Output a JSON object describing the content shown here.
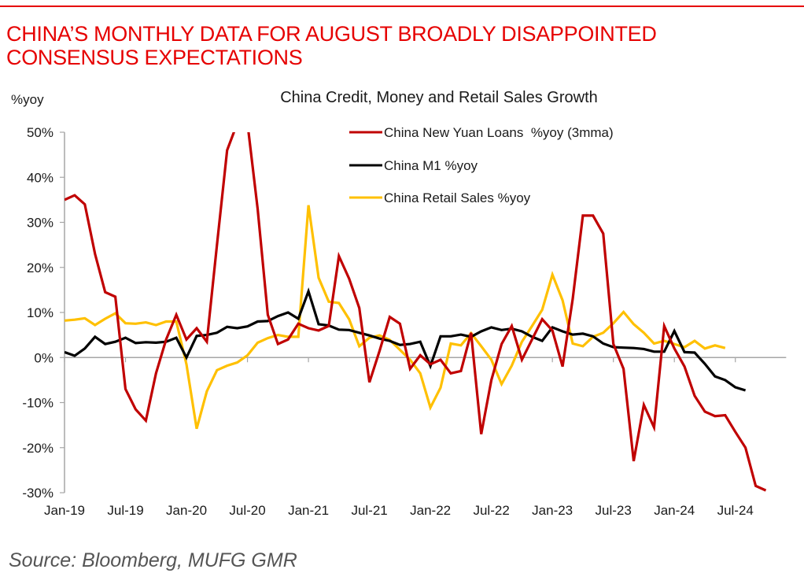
{
  "header": {
    "headline_line1": "CHINA’S MONTHLY DATA FOR AUGUST BROADLY DISAPPOINTED",
    "headline_line2": "CONSENSUS EXPECTATIONS",
    "rule_color": "#e60000"
  },
  "footer": {
    "source": "Source: Bloomberg, MUFG GMR"
  },
  "chart_data": {
    "type": "line",
    "title": "China Credit, Money and Retail Sales Growth",
    "ylabel": "%yoy",
    "xlabel": "",
    "ylim": [
      -30,
      50
    ],
    "yticks": [
      50,
      40,
      30,
      20,
      10,
      0,
      -10,
      -20,
      -30
    ],
    "ytick_labels": [
      "50%",
      "40%",
      "30%",
      "20%",
      "10%",
      "0%",
      "-10%",
      "-20%",
      "-30%"
    ],
    "x_start": "Jan-19",
    "x_end": "Aug-24",
    "xtick_labels": [
      "Jan-19",
      "Jul-19",
      "Jan-20",
      "Jul-20",
      "Jan-21",
      "Jul-21",
      "Jan-22",
      "Jul-22",
      "Jan-23",
      "Jul-23",
      "Jan-24",
      "Jul-24"
    ],
    "xtick_step_months": 6,
    "grid": false,
    "legend_position": "top-center",
    "series": [
      {
        "name": "China New Yuan Loans  %yoy (3mma)",
        "color": "#c00000",
        "values": [
          35,
          36,
          34,
          23,
          14.5,
          13.5,
          -7,
          -11.5,
          -14,
          -3.5,
          4,
          9.5,
          4,
          6.5,
          3.5,
          25,
          46,
          52,
          52,
          33,
          9.5,
          3,
          4,
          7.5,
          6.5,
          6,
          7,
          22.5,
          17.5,
          11,
          -5.5,
          1.5,
          9,
          7.5,
          -2.5,
          0.5,
          -1.5,
          -0.5,
          -3.5,
          -3,
          5.5,
          -17,
          -5,
          3,
          7,
          -0.5,
          4,
          8.5,
          6,
          -2,
          13,
          31.5,
          31.5,
          27.5,
          3,
          -2.5,
          -23,
          -10.5,
          -15.5,
          7,
          2,
          -2,
          -8.5,
          -12,
          -13,
          -12.8,
          -16.5,
          -20,
          -28.5,
          -29.5
        ]
      },
      {
        "name": "China M1 %yoy",
        "color": "#000000",
        "values": [
          1.2,
          0.4,
          2,
          4.6,
          3,
          3.5,
          4.4,
          3.2,
          3.4,
          3.3,
          3.5,
          4.4,
          0,
          4.8,
          5,
          5.5,
          6.8,
          6.5,
          6.9,
          8,
          8.1,
          9.2,
          10,
          8.6,
          14.7,
          7.4,
          7.1,
          6.2,
          6.1,
          5.5,
          4.9,
          4.2,
          3.7,
          2.8,
          3,
          3.5,
          -1.9,
          4.7,
          4.7,
          5.1,
          4.6,
          5.8,
          6.7,
          6.1,
          6.4,
          5.8,
          4.6,
          3.7,
          6.7,
          5.8,
          5.1,
          5.3,
          4.7,
          3.1,
          2.3,
          2.2,
          2.1,
          1.9,
          1.3,
          1.3,
          5.9,
          1.2,
          1.1,
          -1.4,
          -4.2,
          -5,
          -6.6,
          -7.3
        ]
      },
      {
        "name": "China Retail Sales %yoy",
        "color": "#ffc000",
        "values": [
          8.2,
          8.4,
          8.7,
          7.2,
          8.6,
          9.8,
          7.6,
          7.5,
          7.8,
          7.2,
          8,
          8,
          -1.5,
          -15.8,
          -7.5,
          -2.8,
          -1.8,
          -1.1,
          0.5,
          3.3,
          4.3,
          5,
          4.6,
          4.6,
          33.8,
          17.7,
          12.4,
          12.1,
          8.5,
          2.5,
          4.4,
          4.9,
          3.9,
          1.7,
          -0.5,
          -3.5,
          -11.1,
          -6.7,
          3.1,
          2.7,
          5.4,
          2.5,
          -0.5,
          -5.9,
          -1.8,
          3.5,
          7,
          10.6,
          18.4,
          12.7,
          3.1,
          2.5,
          4.6,
          5.5,
          7.6,
          10.1,
          7.4,
          5.5,
          3.1,
          3.7,
          3,
          2.3,
          3.7,
          2,
          2.7,
          2.1
        ]
      }
    ]
  }
}
